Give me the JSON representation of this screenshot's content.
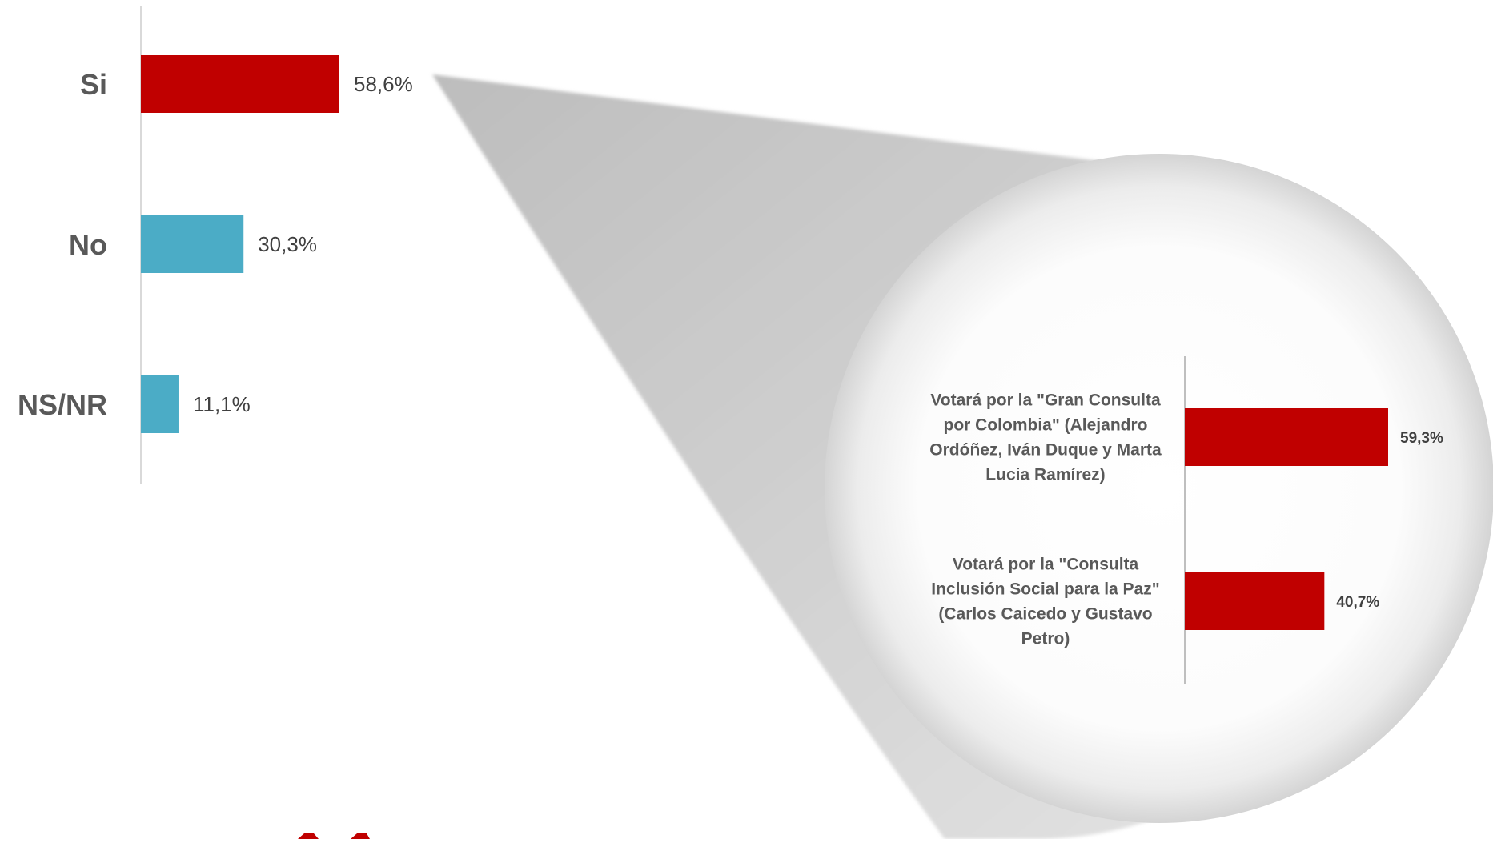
{
  "chart_data": [
    {
      "type": "bar",
      "orientation": "horizontal",
      "categories": [
        "Si",
        "No",
        "NS/NR"
      ],
      "values": [
        58.6,
        30.3,
        11.1
      ],
      "value_labels": [
        "58,6%",
        "30,3%",
        "11,1%"
      ],
      "colors": [
        "#C00000",
        "#4BACC6",
        "#4BACC6"
      ],
      "xlim": [
        0,
        100
      ],
      "grid": false
    },
    {
      "type": "bar",
      "orientation": "horizontal",
      "categories": [
        [
          "Votará por la  \"Gran Consulta",
          "por Colombia\" (Alejandro",
          "Ordóñez, Iván Duque y Marta",
          "Lucia Ramírez)"
        ],
        [
          "Votará por la \"Consulta",
          "Inclusión Social para la Paz\"",
          "(Carlos Caicedo y Gustavo",
          "Petro)"
        ]
      ],
      "values": [
        59.3,
        40.7
      ],
      "value_labels": [
        "59,3%",
        "40,7%"
      ],
      "colors": [
        "#C00000",
        "#C00000"
      ],
      "xlim": [
        0,
        100
      ],
      "grid": false
    }
  ]
}
